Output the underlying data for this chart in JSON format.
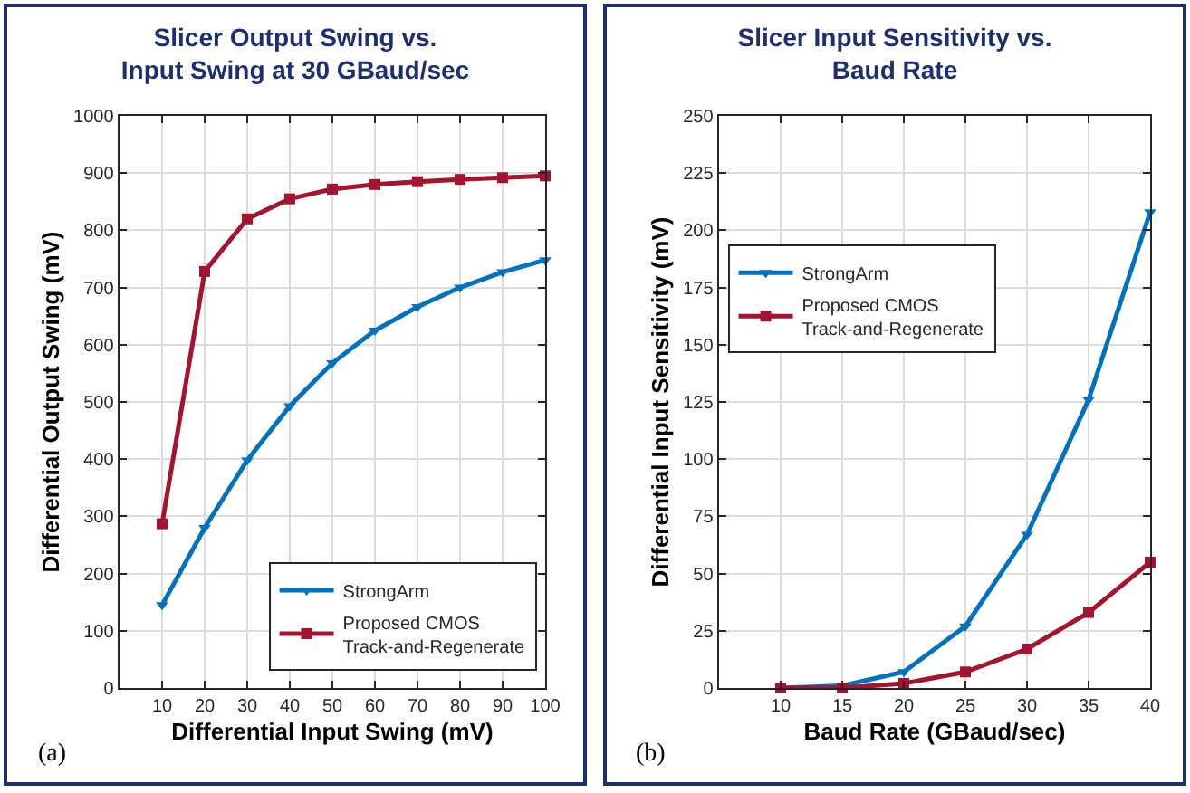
{
  "chart_data": [
    {
      "type": "line",
      "title": "Slicer Output Swing vs.\nInput Swing at 30 GBaud/sec",
      "xlabel": "Differential Input Swing (mV)",
      "ylabel": "Differential Output Swing (mV)",
      "x": [
        10,
        20,
        30,
        40,
        50,
        60,
        70,
        80,
        90,
        100
      ],
      "xlim": [
        0,
        100
      ],
      "xticks": [
        10,
        20,
        30,
        40,
        50,
        60,
        70,
        80,
        90,
        100
      ],
      "ylim": [
        0,
        1000
      ],
      "yticks": [
        0,
        100,
        200,
        300,
        400,
        500,
        600,
        700,
        800,
        900,
        1000
      ],
      "grid": true,
      "legend": "bottom right",
      "annotations": [
        "(a)"
      ],
      "series": [
        {
          "name": "StrongArm",
          "color": "#0072bd",
          "marker": "triangle",
          "values": [
            145,
            280,
            398,
            493,
            568,
            625,
            666,
            700,
            727,
            748
          ]
        },
        {
          "name": "Proposed CMOS\nTrack-and-Regenerate",
          "color": "#a2142f",
          "marker": "square",
          "values": [
            287,
            728,
            820,
            855,
            872,
            880,
            885,
            889,
            892,
            895
          ]
        }
      ]
    },
    {
      "type": "line",
      "title": "Slicer Input Sensitivity vs.\nBaud Rate",
      "xlabel": "Baud Rate (GBaud/sec)",
      "ylabel": "Differential Input Sensitivity (mV)",
      "x": [
        10,
        15,
        20,
        25,
        30,
        35,
        40
      ],
      "xlim": [
        5,
        40
      ],
      "xticks": [
        10,
        15,
        20,
        25,
        30,
        35,
        40
      ],
      "ylim": [
        0,
        250
      ],
      "yticks": [
        0,
        25,
        50,
        75,
        100,
        125,
        150,
        175,
        200,
        225,
        250
      ],
      "grid": true,
      "legend": "left",
      "annotations": [
        "(b)"
      ],
      "series": [
        {
          "name": "StrongArm",
          "color": "#0072bd",
          "marker": "triangle",
          "values": [
            0,
            1,
            7,
            27,
            67,
            126,
            208
          ]
        },
        {
          "name": "Proposed CMOS\nTrack-and-Regenerate",
          "color": "#a2142f",
          "marker": "square",
          "values": [
            0,
            0,
            2,
            7,
            17,
            33,
            55
          ]
        }
      ]
    }
  ]
}
